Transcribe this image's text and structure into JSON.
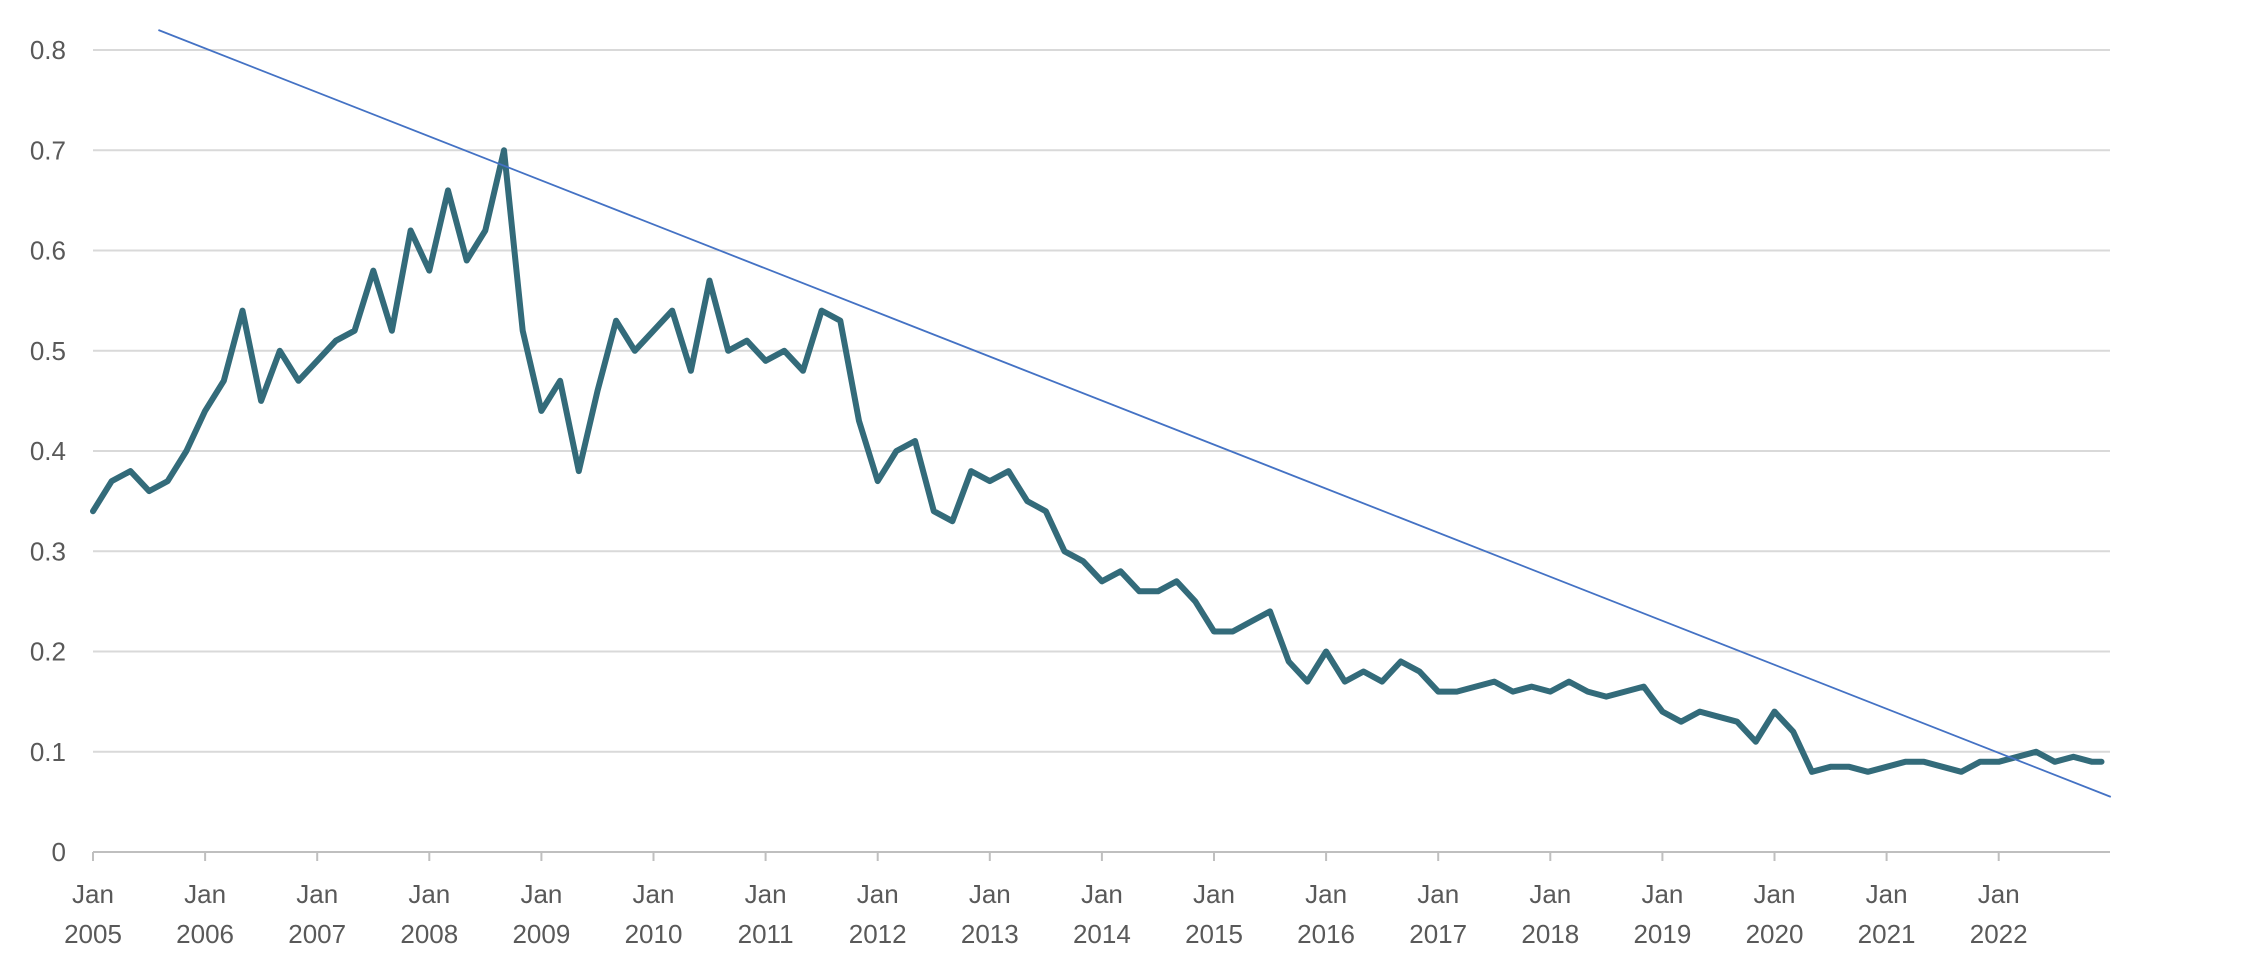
{
  "chart_data": {
    "type": "line",
    "title": "",
    "xlabel": "",
    "ylabel": "",
    "ylim": [
      0,
      0.8
    ],
    "y_ticks": [
      "0",
      "0.1",
      "0.2",
      "0.3",
      "0.4",
      "0.5",
      "0.6",
      "0.7",
      "0.8"
    ],
    "x_ticks": [
      {
        "month": "Jan",
        "year": "2005"
      },
      {
        "month": "Jan",
        "year": "2006"
      },
      {
        "month": "Jan",
        "year": "2007"
      },
      {
        "month": "Jan",
        "year": "2008"
      },
      {
        "month": "Jan",
        "year": "2009"
      },
      {
        "month": "Jan",
        "year": "2010"
      },
      {
        "month": "Jan",
        "year": "2011"
      },
      {
        "month": "Jan",
        "year": "2012"
      },
      {
        "month": "Jan",
        "year": "2013"
      },
      {
        "month": "Jan",
        "year": "2014"
      },
      {
        "month": "Jan",
        "year": "2015"
      },
      {
        "month": "Jan",
        "year": "2016"
      },
      {
        "month": "Jan",
        "year": "2017"
      },
      {
        "month": "Jan",
        "year": "2018"
      },
      {
        "month": "Jan",
        "year": "2019"
      },
      {
        "month": "Jan",
        "year": "2020"
      },
      {
        "month": "Jan",
        "year": "2021"
      },
      {
        "month": "Jan",
        "year": "2022"
      }
    ],
    "xlim": [
      "2005-01",
      "2022-12"
    ],
    "grid": true,
    "legend": "none",
    "series": [
      {
        "color": "#336b7a",
        "x": [
          "2005-01",
          "2005-03",
          "2005-05",
          "2005-07",
          "2005-09",
          "2005-11",
          "2006-01",
          "2006-03",
          "2006-05",
          "2006-07",
          "2006-09",
          "2006-11",
          "2007-01",
          "2007-03",
          "2007-05",
          "2007-07",
          "2007-09",
          "2007-11",
          "2008-01",
          "2008-03",
          "2008-05",
          "2008-07",
          "2008-09",
          "2008-11",
          "2009-01",
          "2009-03",
          "2009-05",
          "2009-07",
          "2009-09",
          "2009-11",
          "2010-01",
          "2010-03",
          "2010-05",
          "2010-07",
          "2010-09",
          "2010-11",
          "2011-01",
          "2011-03",
          "2011-05",
          "2011-07",
          "2011-09",
          "2011-11",
          "2012-01",
          "2012-03",
          "2012-05",
          "2012-07",
          "2012-09",
          "2012-11",
          "2013-01",
          "2013-03",
          "2013-05",
          "2013-07",
          "2013-09",
          "2013-11",
          "2014-01",
          "2014-03",
          "2014-05",
          "2014-07",
          "2014-09",
          "2014-11",
          "2015-01",
          "2015-03",
          "2015-05",
          "2015-07",
          "2015-09",
          "2015-11",
          "2016-01",
          "2016-03",
          "2016-05",
          "2016-07",
          "2016-09",
          "2016-11",
          "2017-01",
          "2017-03",
          "2017-05",
          "2017-07",
          "2017-09",
          "2017-11",
          "2018-01",
          "2018-03",
          "2018-05",
          "2018-07",
          "2018-09",
          "2018-11",
          "2019-01",
          "2019-03",
          "2019-05",
          "2019-07",
          "2019-09",
          "2019-11",
          "2020-01",
          "2020-03",
          "2020-05",
          "2020-07",
          "2020-09",
          "2020-11",
          "2021-01",
          "2021-03",
          "2021-05",
          "2021-07",
          "2021-09",
          "2021-11",
          "2022-01",
          "2022-03",
          "2022-05",
          "2022-07",
          "2022-09",
          "2022-11",
          "2022-12"
        ],
        "values": [
          0.34,
          0.37,
          0.38,
          0.36,
          0.37,
          0.4,
          0.44,
          0.47,
          0.54,
          0.45,
          0.5,
          0.47,
          0.49,
          0.51,
          0.52,
          0.58,
          0.52,
          0.62,
          0.58,
          0.66,
          0.59,
          0.62,
          0.7,
          0.52,
          0.44,
          0.47,
          0.38,
          0.46,
          0.53,
          0.5,
          0.52,
          0.54,
          0.48,
          0.57,
          0.5,
          0.51,
          0.49,
          0.5,
          0.48,
          0.54,
          0.53,
          0.43,
          0.37,
          0.4,
          0.41,
          0.34,
          0.33,
          0.38,
          0.37,
          0.38,
          0.35,
          0.34,
          0.3,
          0.29,
          0.27,
          0.28,
          0.26,
          0.26,
          0.27,
          0.25,
          0.22,
          0.22,
          0.23,
          0.24,
          0.19,
          0.17,
          0.2,
          0.17,
          0.18,
          0.17,
          0.19,
          0.18,
          0.16,
          0.16,
          0.165,
          0.17,
          0.16,
          0.165,
          0.16,
          0.17,
          0.16,
          0.155,
          0.16,
          0.165,
          0.14,
          0.13,
          0.14,
          0.135,
          0.13,
          0.11,
          0.14,
          0.12,
          0.08,
          0.085,
          0.085,
          0.08,
          0.085,
          0.09,
          0.09,
          0.085,
          0.08,
          0.09,
          0.09,
          0.095,
          0.1,
          0.09,
          0.095,
          0.09,
          0.09
        ]
      },
      {
        "color": "#4472c4",
        "x": [
          "2005-08",
          "2023-01"
        ],
        "values": [
          0.82,
          0.055
        ]
      }
    ]
  }
}
